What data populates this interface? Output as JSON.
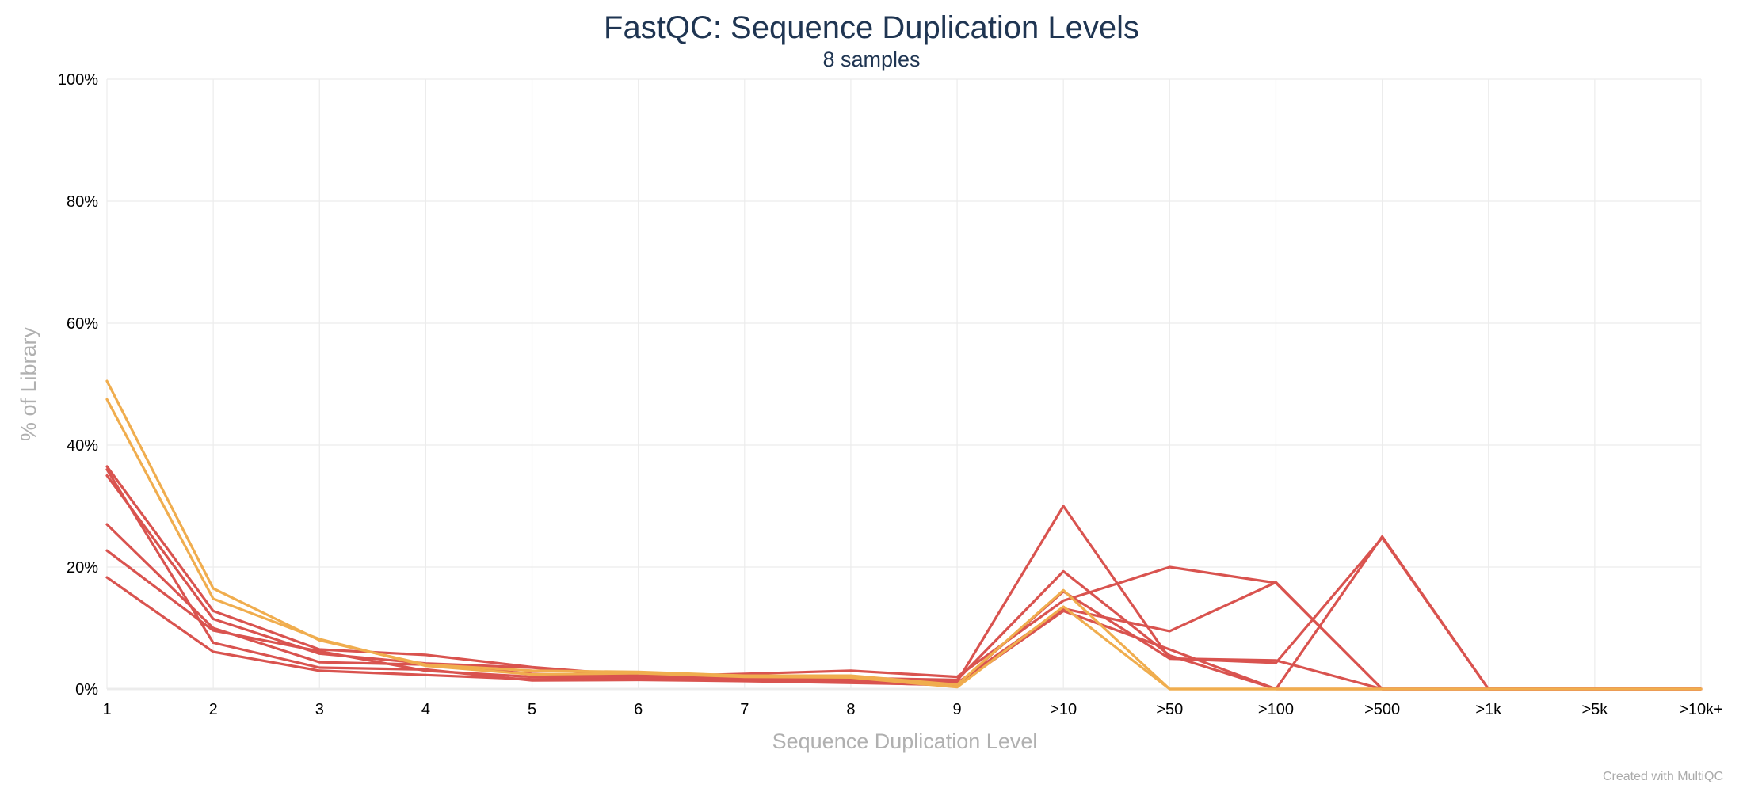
{
  "chart_data": {
    "type": "line",
    "title": "FastQC: Sequence Duplication Levels",
    "subtitle": "8 samples",
    "xlabel": "Sequence Duplication Level",
    "ylabel": "% of Library",
    "categories": [
      "1",
      "2",
      "3",
      "4",
      "5",
      "6",
      "7",
      "8",
      "9",
      ">10",
      ">50",
      ">100",
      ">500",
      ">1k",
      ">5k",
      ">10k+"
    ],
    "ylim": [
      0,
      100
    ],
    "yticks": [
      0,
      20,
      40,
      60,
      80,
      100
    ],
    "ytick_labels": [
      "0%",
      "20%",
      "40%",
      "60%",
      "80%",
      "100%"
    ],
    "grid": true,
    "legend": "none",
    "colors": {
      "fail": "#d9534f",
      "warn": "#f0ad4e",
      "grid": "#ececec",
      "title": "#1f3552",
      "axis_label": "#b0b0b0",
      "credit": "#aaaaaa"
    },
    "series": [
      {
        "status": "fail",
        "values": [
          36.5,
          12.8,
          6.5,
          5.6,
          3.6,
          2.2,
          1.9,
          1.6,
          1.2,
          30.0,
          5.0,
          4.7,
          0,
          0,
          0,
          0
        ]
      },
      {
        "status": "fail",
        "values": [
          35.0,
          11.5,
          5.8,
          4.2,
          3.5,
          2.0,
          1.8,
          1.8,
          1.5,
          19.3,
          5.5,
          0,
          0,
          0,
          0,
          0
        ]
      },
      {
        "status": "fail",
        "values": [
          27.0,
          10.0,
          4.4,
          4.0,
          2.5,
          2.0,
          2.5,
          3.0,
          2.0,
          14.5,
          20.0,
          17.4,
          0,
          0,
          0,
          0
        ]
      },
      {
        "status": "fail",
        "values": [
          22.7,
          9.6,
          6.2,
          3.0,
          2.0,
          1.8,
          1.5,
          1.4,
          1.0,
          13.2,
          9.5,
          17.5,
          0,
          0,
          0,
          0
        ]
      },
      {
        "status": "fail",
        "values": [
          18.3,
          6.1,
          3.0,
          2.3,
          1.6,
          1.6,
          1.8,
          1.1,
          0.6,
          12.8,
          6.5,
          0,
          25.0,
          0,
          0,
          0
        ]
      },
      {
        "status": "fail",
        "values": [
          36.0,
          7.6,
          3.5,
          3.2,
          1.4,
          1.5,
          1.3,
          1.0,
          0.7,
          16.0,
          5.0,
          4.3,
          24.8,
          0,
          0,
          0
        ]
      },
      {
        "status": "warn",
        "values": [
          50.5,
          16.5,
          8.0,
          4.0,
          3.0,
          2.8,
          2.2,
          2.2,
          0.7,
          16.2,
          0,
          0,
          0,
          0,
          0,
          0
        ]
      },
      {
        "status": "warn",
        "values": [
          47.5,
          14.8,
          8.2,
          3.8,
          2.4,
          2.6,
          2.0,
          1.9,
          0.3,
          13.5,
          0,
          0,
          0,
          0,
          0,
          0
        ]
      }
    ],
    "credit": "Created with MultiQC"
  }
}
